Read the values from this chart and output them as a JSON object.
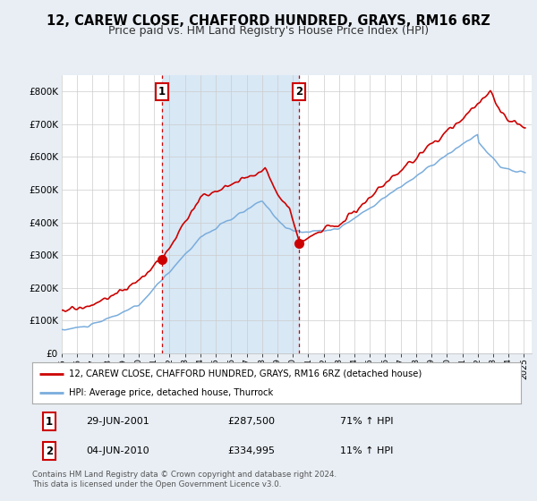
{
  "title": "12, CAREW CLOSE, CHAFFORD HUNDRED, GRAYS, RM16 6RZ",
  "subtitle": "Price paid vs. HM Land Registry's House Price Index (HPI)",
  "ylim": [
    0,
    850000
  ],
  "yticks": [
    0,
    100000,
    200000,
    300000,
    400000,
    500000,
    600000,
    700000,
    800000
  ],
  "ytick_labels": [
    "£0",
    "£100K",
    "£200K",
    "£300K",
    "£400K",
    "£500K",
    "£600K",
    "£700K",
    "£800K"
  ],
  "sale1_date": 2001.49,
  "sale1_price": 287500,
  "sale2_date": 2010.42,
  "sale2_price": 334995,
  "hpi_color": "#7aaddc",
  "price_color": "#cc0000",
  "shade_color": "#d8e8f5",
  "background_color": "#e8eef4",
  "plot_bg_color": "#ffffff",
  "legend_price_label": "12, CAREW CLOSE, CHAFFORD HUNDRED, GRAYS, RM16 6RZ (detached house)",
  "legend_hpi_label": "HPI: Average price, detached house, Thurrock",
  "table_row1": [
    "1",
    "29-JUN-2001",
    "£287,500",
    "71% ↑ HPI"
  ],
  "table_row2": [
    "2",
    "04-JUN-2010",
    "£334,995",
    "11% ↑ HPI"
  ],
  "footnote": "Contains HM Land Registry data © Crown copyright and database right 2024.\nThis data is licensed under the Open Government Licence v3.0.",
  "title_fontsize": 10.5,
  "subtitle_fontsize": 9
}
